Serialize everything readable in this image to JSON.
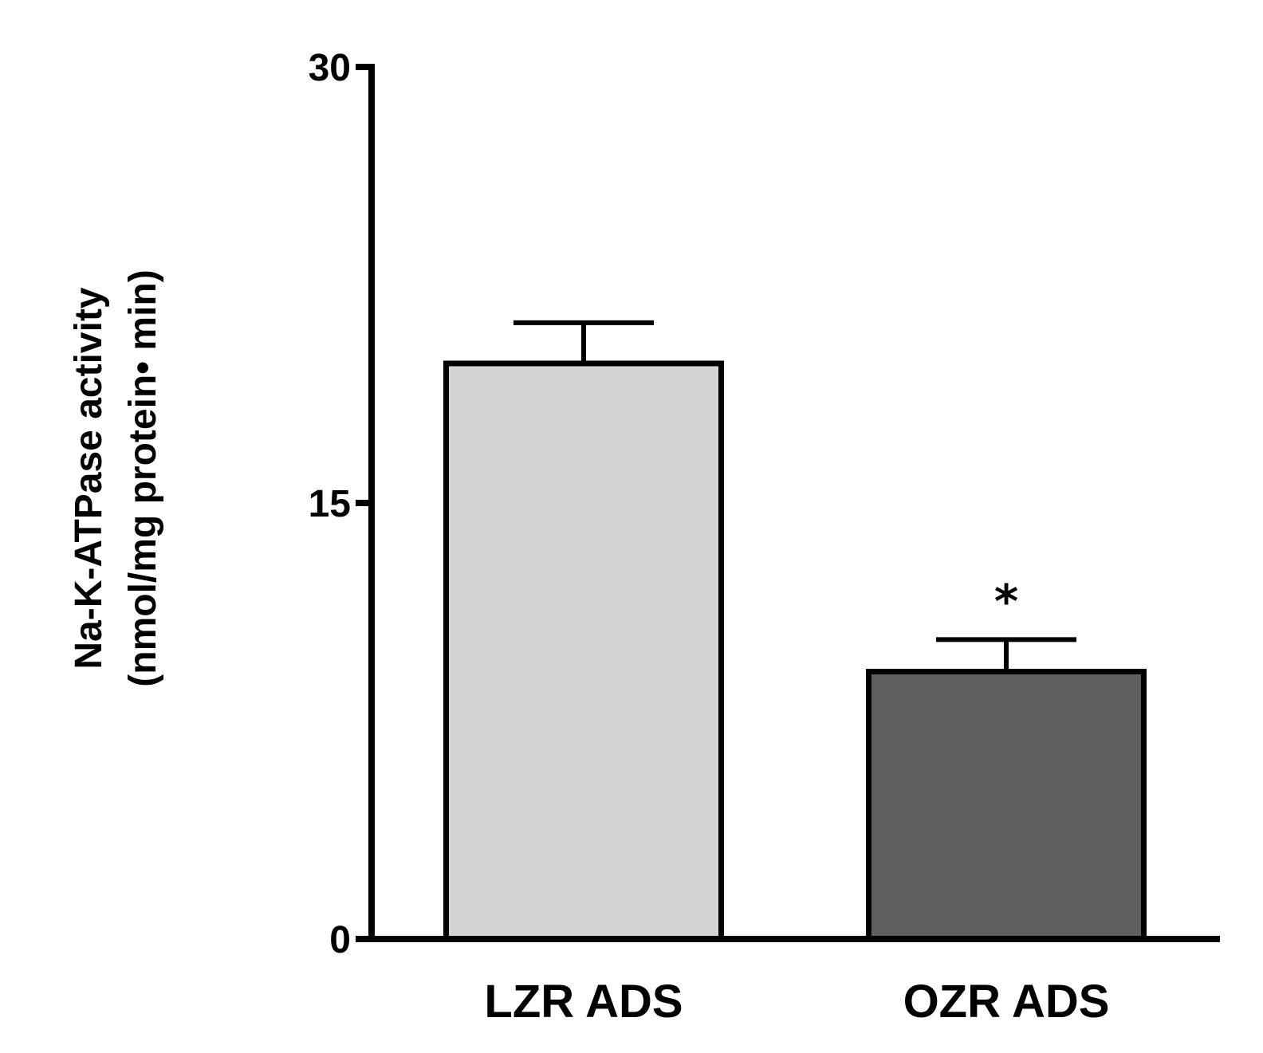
{
  "chart_data": {
    "type": "bar",
    "title": "",
    "ylabel_line1": "Na-K-ATPase activity",
    "ylabel_line2": "(nmol/mg protein• min)",
    "xlabel": "",
    "ylim": [
      0,
      30
    ],
    "yticks": [
      0,
      15,
      30
    ],
    "ytick_labels": [
      "0",
      "15",
      "30"
    ],
    "categories": [
      "LZR ADS",
      "OZR ADS"
    ],
    "values": [
      19.8,
      9.2
    ],
    "errors": [
      1.4,
      1.1
    ],
    "bar_colors": [
      "#d4d4d4",
      "#606060"
    ],
    "annotations": [
      "",
      "*"
    ],
    "grid": false,
    "legend": "none"
  }
}
